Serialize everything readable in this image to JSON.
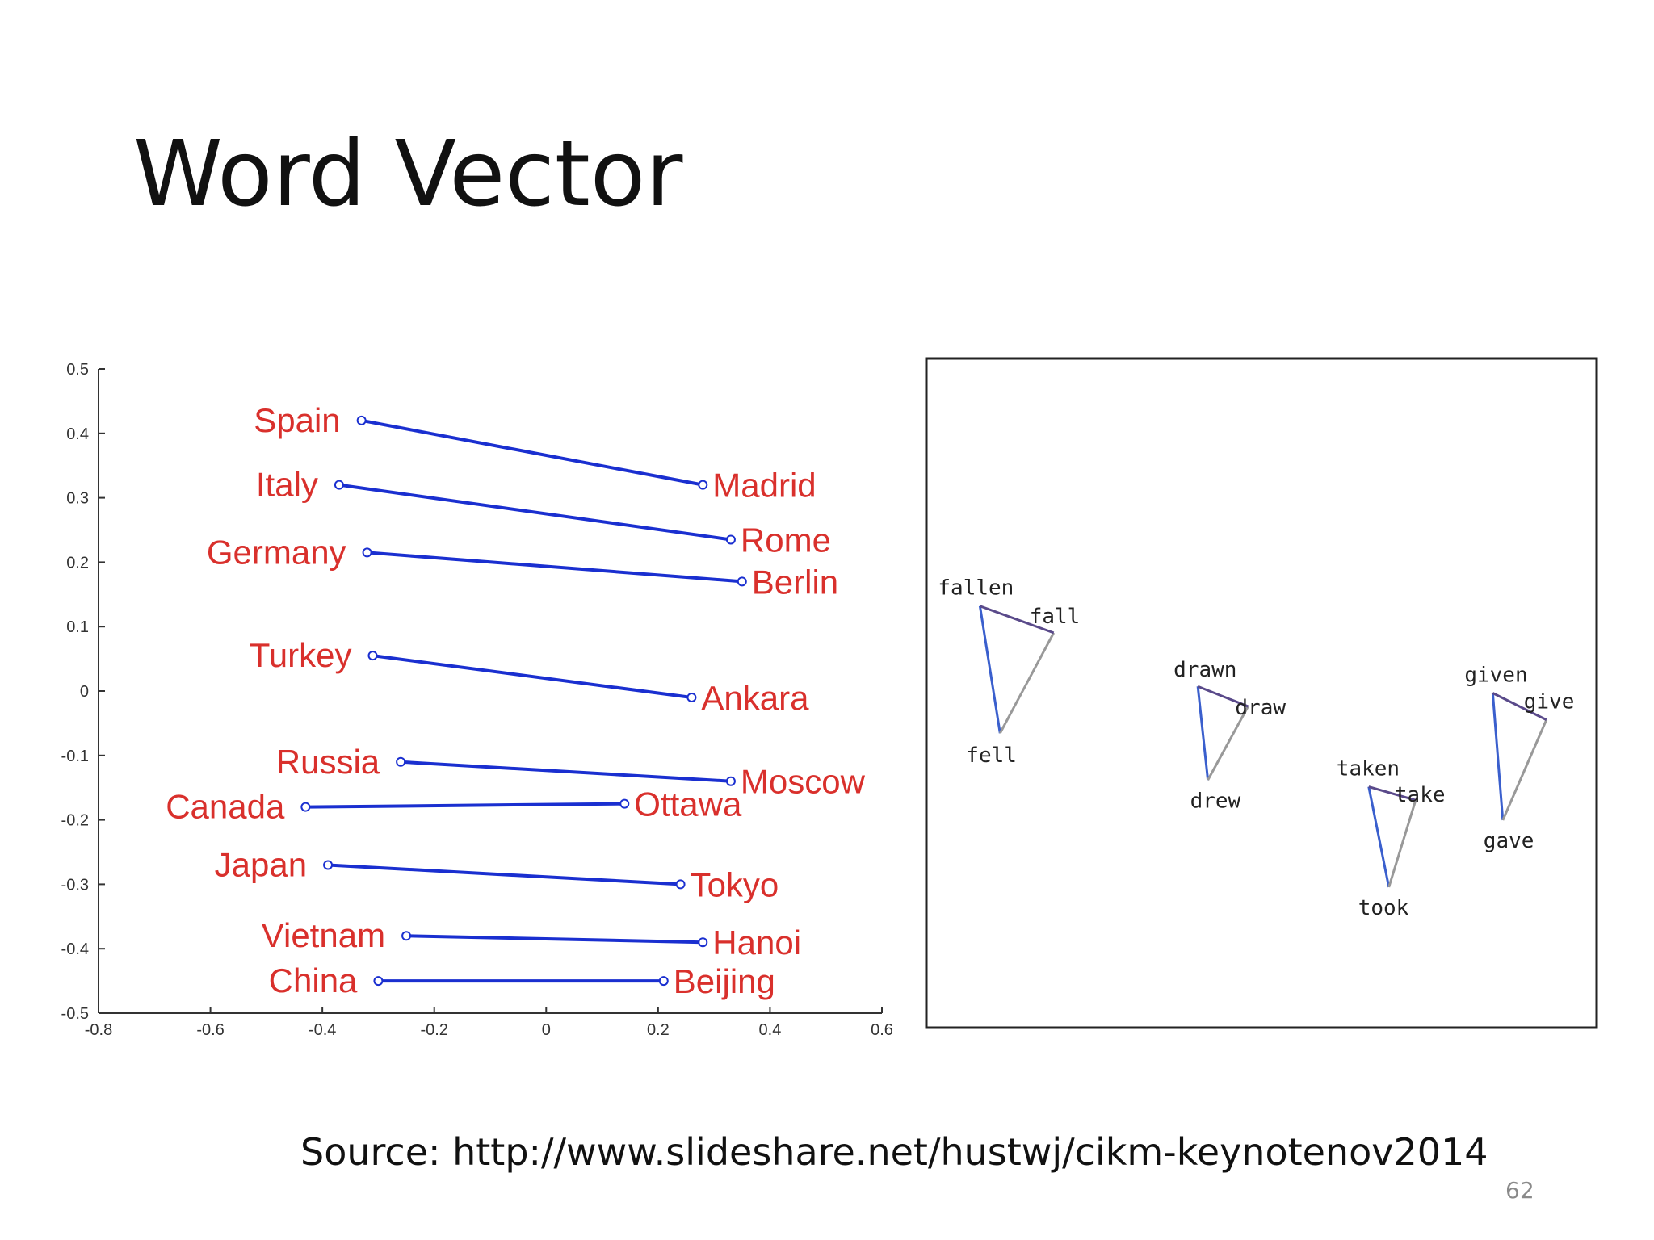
{
  "slide": {
    "title": "Word Vector",
    "source": "Source: http://www.slideshare.net/hustwj/cikm-keynotenov2014",
    "page_number": "62"
  },
  "colors": {
    "country_label": "#d9302c",
    "vector_line": "#1a2fd0",
    "axis": "#333333",
    "verb_text": "#222222",
    "verb_blue": "#3a5fcd",
    "verb_gray": "#999999",
    "verb_purple": "#5a4a8a"
  },
  "chart_data": [
    {
      "type": "scatter",
      "xlim": [
        -0.8,
        0.6
      ],
      "ylim": [
        -0.5,
        0.5
      ],
      "xticks": [
        "-0.8",
        "-0.6",
        "-0.4",
        "-0.2",
        "0",
        "0.2",
        "0.4",
        "0.6"
      ],
      "yticks": [
        "0.5",
        "0.4",
        "0.3",
        "0.2",
        "0.1",
        "0",
        "-0.1",
        "-0.2",
        "-0.3",
        "-0.4",
        "-0.5"
      ],
      "pairs": [
        {
          "country": "Spain",
          "cx": -0.33,
          "cy": 0.42,
          "capital": "Madrid",
          "kx": 0.28,
          "ky": 0.32
        },
        {
          "country": "Italy",
          "cx": -0.37,
          "cy": 0.32,
          "capital": "Rome",
          "kx": 0.33,
          "ky": 0.235
        },
        {
          "country": "Germany",
          "cx": -0.32,
          "cy": 0.215,
          "capital": "Berlin",
          "kx": 0.35,
          "ky": 0.17
        },
        {
          "country": "Turkey",
          "cx": -0.31,
          "cy": 0.055,
          "capital": "Ankara",
          "kx": 0.26,
          "ky": -0.01
        },
        {
          "country": "Russia",
          "cx": -0.26,
          "cy": -0.11,
          "capital": "Moscow",
          "kx": 0.33,
          "ky": -0.14
        },
        {
          "country": "Canada",
          "cx": -0.43,
          "cy": -0.18,
          "capital": "Ottawa",
          "kx": 0.14,
          "ky": -0.175
        },
        {
          "country": "Japan",
          "cx": -0.39,
          "cy": -0.27,
          "capital": "Tokyo",
          "kx": 0.24,
          "ky": -0.3
        },
        {
          "country": "Vietnam",
          "cx": -0.25,
          "cy": -0.38,
          "capital": "Hanoi",
          "kx": 0.28,
          "ky": -0.39
        },
        {
          "country": "China",
          "cx": -0.3,
          "cy": -0.45,
          "capital": "Beijing",
          "kx": 0.21,
          "ky": -0.45
        }
      ]
    },
    {
      "type": "scatter",
      "xlim": [
        0,
        100
      ],
      "ylim": [
        0,
        100
      ],
      "points": [
        {
          "word": "fallen",
          "x": 8,
          "y": 63
        },
        {
          "word": "fall",
          "x": 19,
          "y": 59
        },
        {
          "word": "fell",
          "x": 11,
          "y": 44
        },
        {
          "word": "drawn",
          "x": 40.5,
          "y": 51
        },
        {
          "word": "draw",
          "x": 48,
          "y": 48
        },
        {
          "word": "drew",
          "x": 42,
          "y": 37
        },
        {
          "word": "taken",
          "x": 66,
          "y": 36
        },
        {
          "word": "take",
          "x": 73,
          "y": 34
        },
        {
          "word": "took",
          "x": 69,
          "y": 21
        },
        {
          "word": "given",
          "x": 84.5,
          "y": 50
        },
        {
          "word": "give",
          "x": 92.5,
          "y": 46
        },
        {
          "word": "gave",
          "x": 86,
          "y": 31
        }
      ],
      "triangles": [
        [
          "fallen",
          "fall",
          "fell"
        ],
        [
          "drawn",
          "draw",
          "drew"
        ],
        [
          "taken",
          "take",
          "took"
        ],
        [
          "given",
          "give",
          "gave"
        ]
      ]
    }
  ]
}
